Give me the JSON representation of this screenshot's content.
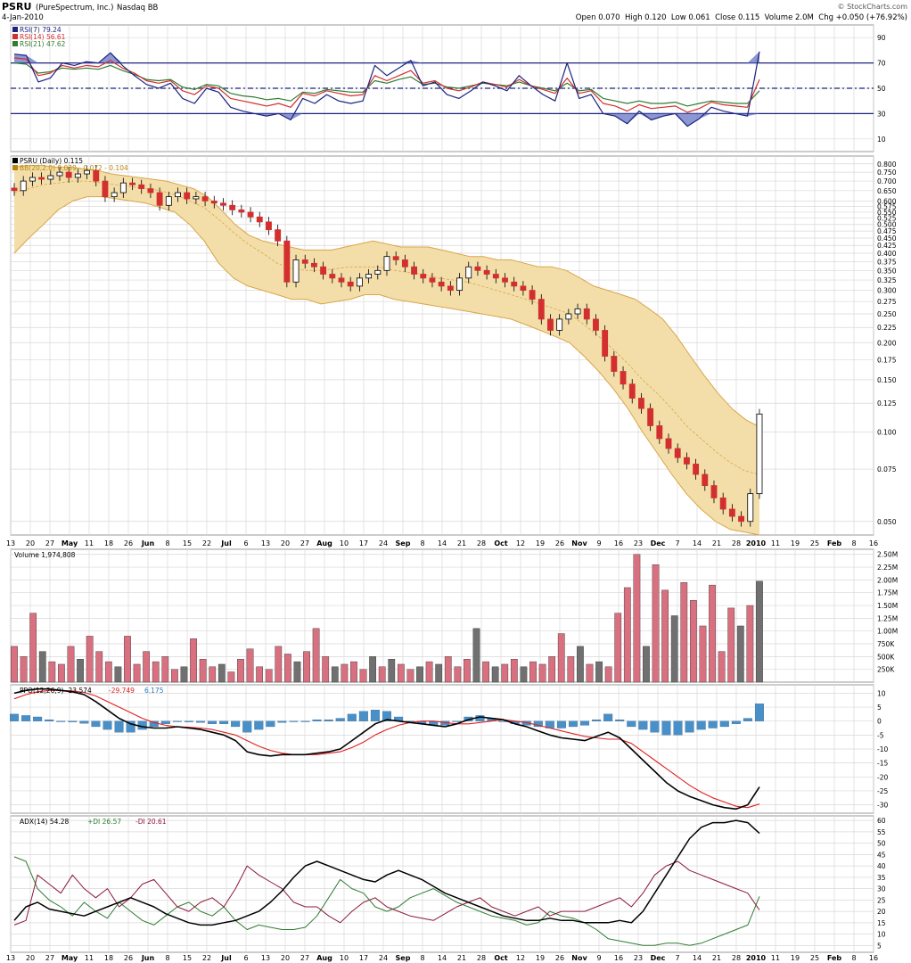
{
  "header": {
    "symbol": "PSRU",
    "company": "(PureSpectrum, Inc.)",
    "exchange": "Nasdaq BB",
    "date": "4-Jan-2010",
    "quote": "Open 0.070  High 0.120  Low 0.061  Close 0.115  Volume 2.0M  Chg +0.050 (+76.92%)",
    "credit": "© StockCharts.com"
  },
  "colors": {
    "grid": "#d8d8d8",
    "frame": "#9a9a9a",
    "navy": "#1a237e",
    "up_candle": "#ffffff",
    "down_candle": "#d32f2f",
    "bb_fill": "#f3deaa",
    "bb_line": "#d9a548",
    "vol_up": "#707070",
    "vol_down": "#d87080",
    "ppo_hist": "#4a90c8",
    "rsi7": "#1a237e",
    "rsi14": "#d32f2f",
    "rsi21": "#2e7d32",
    "plus_di": "#2e7d32",
    "minus_di": "#8b1a3a"
  },
  "x_axis": {
    "labels": [
      "13",
      "20",
      "27",
      "May",
      "11",
      "18",
      "26",
      "Jun",
      "8",
      "15",
      "22",
      "Jul",
      "6",
      "13",
      "20",
      "27",
      "Aug",
      "10",
      "17",
      "24",
      "Sep",
      "8",
      "14",
      "21",
      "28",
      "Oct",
      "12",
      "19",
      "26",
      "Nov",
      "9",
      "16",
      "23",
      "Dec",
      "7",
      "14",
      "21",
      "28",
      "2010",
      "11",
      "19",
      "25",
      "Feb",
      "8",
      "16"
    ],
    "bold": [
      "May",
      "Jun",
      "Jul",
      "Aug",
      "Sep",
      "Oct",
      "Nov",
      "Dec",
      "2010",
      "Feb"
    ]
  },
  "chart_data": [
    {
      "type": "line",
      "panel": "rsi",
      "legend": [
        "RSI(7) 79.24",
        "RSI(14) 56.61",
        "RSI(21) 47.62"
      ],
      "ylim": [
        0,
        100
      ],
      "ticks": [
        90,
        70,
        50,
        30,
        10
      ],
      "reference_lines": [
        70,
        50,
        30
      ],
      "series": [
        {
          "name": "RSI(7)",
          "values": [
            77,
            76,
            55,
            58,
            70,
            68,
            71,
            70,
            78,
            68,
            60,
            53,
            50,
            54,
            42,
            38,
            50,
            47,
            35,
            32,
            30,
            28,
            30,
            25,
            42,
            38,
            45,
            40,
            38,
            40,
            68,
            60,
            66,
            72,
            52,
            55,
            45,
            42,
            48,
            55,
            52,
            48,
            60,
            52,
            45,
            40,
            70,
            42,
            45,
            30,
            28,
            22,
            32,
            25,
            28,
            30,
            20,
            26,
            35,
            32,
            30,
            28,
            79
          ]
        },
        {
          "name": "RSI(14)",
          "values": [
            74,
            73,
            60,
            62,
            68,
            66,
            68,
            67,
            72,
            66,
            62,
            56,
            54,
            56,
            48,
            45,
            52,
            50,
            42,
            40,
            38,
            36,
            38,
            35,
            46,
            44,
            48,
            46,
            44,
            45,
            60,
            56,
            60,
            64,
            54,
            56,
            50,
            48,
            51,
            55,
            53,
            51,
            57,
            52,
            49,
            46,
            58,
            46,
            48,
            38,
            36,
            32,
            37,
            34,
            35,
            36,
            31,
            34,
            39,
            37,
            36,
            35,
            57
          ]
        },
        {
          "name": "RSI(21)",
          "values": [
            70,
            69,
            62,
            63,
            66,
            65,
            66,
            65,
            68,
            64,
            61,
            57,
            56,
            57,
            51,
            49,
            53,
            52,
            46,
            44,
            43,
            41,
            42,
            40,
            47,
            46,
            49,
            48,
            47,
            47,
            56,
            54,
            57,
            59,
            53,
            54,
            51,
            50,
            52,
            54,
            53,
            52,
            55,
            52,
            50,
            48,
            54,
            48,
            49,
            42,
            40,
            38,
            40,
            38,
            38,
            39,
            36,
            38,
            40,
            39,
            38,
            38,
            48
          ]
        }
      ]
    },
    {
      "type": "candlestick",
      "panel": "price",
      "legend": [
        "PSRU (Daily) 0.115",
        "BB(20,2.0) 0.039 - 0.072 - 0.104"
      ],
      "scale": "log",
      "ylim": [
        0.045,
        0.85
      ],
      "ticks": [
        0.8,
        0.75,
        0.7,
        0.65,
        0.6,
        0.575,
        0.55,
        0.525,
        0.5,
        0.475,
        0.45,
        0.425,
        0.4,
        0.375,
        0.35,
        0.325,
        0.3,
        0.275,
        0.25,
        0.225,
        0.2,
        0.175,
        0.15,
        0.125,
        0.1,
        0.075,
        0.05
      ],
      "close": [
        0.65,
        0.7,
        0.72,
        0.71,
        0.73,
        0.75,
        0.72,
        0.74,
        0.76,
        0.7,
        0.62,
        0.64,
        0.69,
        0.68,
        0.66,
        0.64,
        0.58,
        0.62,
        0.64,
        0.61,
        0.62,
        0.6,
        0.59,
        0.58,
        0.56,
        0.55,
        0.53,
        0.51,
        0.48,
        0.44,
        0.32,
        0.38,
        0.37,
        0.36,
        0.34,
        0.33,
        0.32,
        0.31,
        0.33,
        0.34,
        0.35,
        0.39,
        0.38,
        0.36,
        0.34,
        0.33,
        0.32,
        0.31,
        0.3,
        0.33,
        0.36,
        0.35,
        0.34,
        0.33,
        0.32,
        0.31,
        0.3,
        0.28,
        0.24,
        0.22,
        0.24,
        0.25,
        0.26,
        0.24,
        0.22,
        0.18,
        0.16,
        0.145,
        0.13,
        0.12,
        0.105,
        0.095,
        0.088,
        0.082,
        0.078,
        0.072,
        0.066,
        0.06,
        0.055,
        0.052,
        0.05,
        0.062,
        0.115
      ],
      "bb_upper": [
        0.78,
        0.79,
        0.79,
        0.78,
        0.78,
        0.77,
        0.76,
        0.74,
        0.73,
        0.72,
        0.71,
        0.7,
        0.68,
        0.66,
        0.62,
        0.56,
        0.5,
        0.46,
        0.44,
        0.43,
        0.42,
        0.41,
        0.41,
        0.41,
        0.42,
        0.43,
        0.44,
        0.43,
        0.42,
        0.42,
        0.42,
        0.41,
        0.4,
        0.39,
        0.39,
        0.38,
        0.38,
        0.37,
        0.36,
        0.36,
        0.35,
        0.33,
        0.31,
        0.3,
        0.29,
        0.28,
        0.26,
        0.24,
        0.21,
        0.18,
        0.155,
        0.135,
        0.12,
        0.11,
        0.104
      ],
      "bb_middle": [
        0.64,
        0.66,
        0.68,
        0.69,
        0.7,
        0.7,
        0.69,
        0.68,
        0.67,
        0.66,
        0.65,
        0.63,
        0.6,
        0.57,
        0.52,
        0.47,
        0.43,
        0.4,
        0.37,
        0.355,
        0.35,
        0.35,
        0.355,
        0.36,
        0.36,
        0.36,
        0.35,
        0.345,
        0.34,
        0.33,
        0.325,
        0.32,
        0.31,
        0.3,
        0.29,
        0.28,
        0.27,
        0.26,
        0.25,
        0.23,
        0.21,
        0.19,
        0.17,
        0.15,
        0.135,
        0.12,
        0.105,
        0.095,
        0.086,
        0.079,
        0.074,
        0.072
      ],
      "bb_lower": [
        0.4,
        0.45,
        0.5,
        0.56,
        0.6,
        0.62,
        0.62,
        0.61,
        0.6,
        0.59,
        0.57,
        0.55,
        0.5,
        0.44,
        0.37,
        0.33,
        0.31,
        0.3,
        0.29,
        0.28,
        0.28,
        0.27,
        0.275,
        0.28,
        0.29,
        0.29,
        0.28,
        0.275,
        0.27,
        0.265,
        0.26,
        0.255,
        0.25,
        0.245,
        0.24,
        0.23,
        0.22,
        0.21,
        0.2,
        0.18,
        0.16,
        0.14,
        0.12,
        0.1,
        0.085,
        0.072,
        0.062,
        0.055,
        0.05,
        0.047,
        0.046,
        0.045
      ]
    },
    {
      "type": "bar",
      "panel": "volume",
      "legend": [
        "Volume 1,974,808"
      ],
      "ylim": [
        0,
        2600000
      ],
      "ticks": [
        "2.50M",
        "2.25M",
        "2.00M",
        "1.75M",
        "1.50M",
        "1.25M",
        "1.00M",
        "750K",
        "500K",
        "250K"
      ],
      "tick_values": [
        2500000,
        2250000,
        2000000,
        1750000,
        1500000,
        1250000,
        1000000,
        750000,
        500000,
        250000
      ],
      "values": [
        700000,
        500000,
        1350000,
        600000,
        400000,
        350000,
        700000,
        450000,
        900000,
        600000,
        400000,
        300000,
        900000,
        350000,
        600000,
        400000,
        500000,
        250000,
        300000,
        850000,
        450000,
        300000,
        350000,
        200000,
        450000,
        650000,
        300000,
        250000,
        700000,
        550000,
        400000,
        600000,
        1050000,
        500000,
        300000,
        350000,
        400000,
        250000,
        500000,
        300000,
        450000,
        350000,
        250000,
        300000,
        400000,
        350000,
        500000,
        300000,
        450000,
        1050000,
        400000,
        300000,
        350000,
        450000,
        300000,
        400000,
        350000,
        500000,
        950000,
        500000,
        700000,
        350000,
        400000,
        300000,
        1350000,
        1850000,
        2500000,
        700000,
        2300000,
        1800000,
        1300000,
        1950000,
        1600000,
        1100000,
        1900000,
        600000,
        1450000,
        1100000,
        1500000,
        1974808
      ],
      "down": [
        true,
        true,
        true,
        false,
        true,
        true,
        true,
        false,
        true,
        true,
        true,
        false,
        true,
        true,
        true,
        true,
        true,
        true,
        false,
        true,
        true,
        true,
        false,
        true,
        true,
        true,
        true,
        true,
        true,
        true,
        false,
        true,
        true,
        true,
        false,
        true,
        true,
        true,
        false,
        true,
        false,
        true,
        true,
        false,
        true,
        false,
        true,
        true,
        true,
        false,
        true,
        false,
        true,
        true,
        false,
        true,
        true,
        true,
        true,
        true,
        false,
        true,
        false,
        true,
        true,
        true,
        true,
        false,
        true,
        true,
        false,
        true,
        true,
        true,
        true,
        true,
        true,
        false,
        true,
        false
      ]
    },
    {
      "type": "line",
      "panel": "ppo",
      "legend": [
        "PPO(12,26,9) -23.574",
        "-29.749",
        "6.175"
      ],
      "ylim": [
        -33,
        13
      ],
      "ticks": [
        10,
        5,
        0,
        -5,
        -10,
        -15,
        -20,
        -25,
        -30
      ],
      "series": [
        {
          "name": "PPO",
          "values": [
            10,
            11,
            11.5,
            11.5,
            11,
            10.5,
            9.5,
            7,
            4,
            1,
            -1,
            -2,
            -2.5,
            -2.5,
            -2,
            -2.5,
            -3,
            -4,
            -5,
            -7,
            -11,
            -12,
            -12.5,
            -12,
            -12,
            -12,
            -11.5,
            -11,
            -10,
            -7,
            -4,
            -1,
            0.5,
            0,
            -0.5,
            -1,
            -1.5,
            -2,
            -1,
            0.5,
            1.5,
            1,
            0.5,
            -1,
            -2,
            -3.5,
            -5,
            -6,
            -6.5,
            -7,
            -5.5,
            -4,
            -6,
            -10,
            -14,
            -18,
            -22,
            -25,
            -27,
            -28.5,
            -30,
            -31,
            -31.5,
            -30,
            -23.6
          ]
        },
        {
          "name": "signal",
          "values": [
            8,
            9.5,
            10.5,
            11,
            11,
            10.8,
            10.3,
            9,
            7,
            5,
            3,
            1,
            -0.5,
            -1.5,
            -2,
            -2.2,
            -2.5,
            -3,
            -4,
            -5,
            -7,
            -9,
            -10.5,
            -11.5,
            -12,
            -12,
            -12,
            -11.5,
            -11,
            -9.5,
            -7.5,
            -5,
            -3,
            -1.5,
            -0.5,
            0,
            0,
            -0.5,
            -1,
            -1,
            -0.5,
            0,
            0.5,
            0,
            -0.5,
            -1.5,
            -2.5,
            -3.5,
            -4.5,
            -5.5,
            -6,
            -6.5,
            -6.5,
            -8,
            -11,
            -14,
            -17,
            -20,
            -23,
            -25.5,
            -27.5,
            -29,
            -30.5,
            -31,
            -29.7
          ]
        },
        {
          "name": "histogram",
          "values": [
            2.5,
            2,
            1.5,
            0.5,
            0,
            -0.3,
            -0.8,
            -2,
            -3,
            -4,
            -4,
            -3,
            -2,
            -1,
            0,
            -0.3,
            -0.5,
            -1,
            -1,
            -2,
            -4,
            -3,
            -2,
            -0.5,
            0,
            0,
            0.5,
            0.5,
            1,
            2.5,
            3.5,
            4,
            3.5,
            1.5,
            0,
            -1,
            -1.5,
            -1.5,
            0,
            1.5,
            2,
            1,
            0,
            -1,
            -1.5,
            -2,
            -2.5,
            -2.5,
            -2,
            -1.5,
            0.5,
            2.5,
            0.5,
            -2,
            -3,
            -4,
            -5,
            -5,
            -4,
            -3,
            -2.5,
            -2,
            -1,
            1,
            6.2
          ]
        }
      ]
    },
    {
      "type": "line",
      "panel": "adx",
      "legend": [
        "ADX(14) 54.28",
        "+DI 26.57",
        "-DI 20.61"
      ],
      "ylim": [
        2,
        62
      ],
      "ticks": [
        60,
        55,
        50,
        45,
        40,
        35,
        30,
        25,
        20,
        15,
        10,
        5
      ],
      "series": [
        {
          "name": "ADX(14)",
          "values": [
            16,
            22,
            24,
            21,
            20,
            19,
            18,
            20,
            22,
            24,
            26,
            24,
            22,
            19,
            17,
            15,
            14,
            14,
            15,
            16,
            18,
            20,
            24,
            29,
            35,
            40,
            42,
            40,
            38,
            36,
            34,
            33,
            36,
            38,
            36,
            34,
            31,
            28,
            26,
            24,
            22,
            20,
            18,
            17,
            16,
            16,
            17,
            16,
            16,
            15,
            15,
            15,
            16,
            15,
            20,
            28,
            36,
            44,
            52,
            57,
            59,
            59,
            60,
            59,
            54.3
          ]
        },
        {
          "name": "+DI",
          "values": [
            44,
            42,
            30,
            25,
            22,
            18,
            24,
            20,
            17,
            24,
            20,
            16,
            14,
            18,
            22,
            24,
            20,
            18,
            22,
            16,
            12,
            14,
            13,
            12,
            12,
            13,
            18,
            26,
            34,
            30,
            28,
            22,
            20,
            22,
            26,
            28,
            30,
            27,
            24,
            22,
            20,
            18,
            17,
            16,
            14,
            15,
            20,
            18,
            17,
            15,
            12,
            8,
            7,
            6,
            5,
            5,
            6,
            6,
            5,
            6,
            8,
            10,
            12,
            14,
            26.6
          ]
        },
        {
          "name": "-DI",
          "values": [
            14,
            16,
            36,
            32,
            28,
            36,
            30,
            26,
            30,
            22,
            26,
            32,
            34,
            28,
            22,
            20,
            24,
            26,
            22,
            30,
            40,
            36,
            33,
            30,
            24,
            22,
            22,
            18,
            15,
            20,
            24,
            26,
            22,
            20,
            18,
            17,
            16,
            19,
            22,
            24,
            26,
            22,
            20,
            18,
            20,
            22,
            18,
            20,
            20,
            20,
            22,
            24,
            26,
            22,
            28,
            36,
            40,
            42,
            38,
            36,
            34,
            32,
            30,
            28,
            20.6
          ]
        }
      ]
    }
  ]
}
